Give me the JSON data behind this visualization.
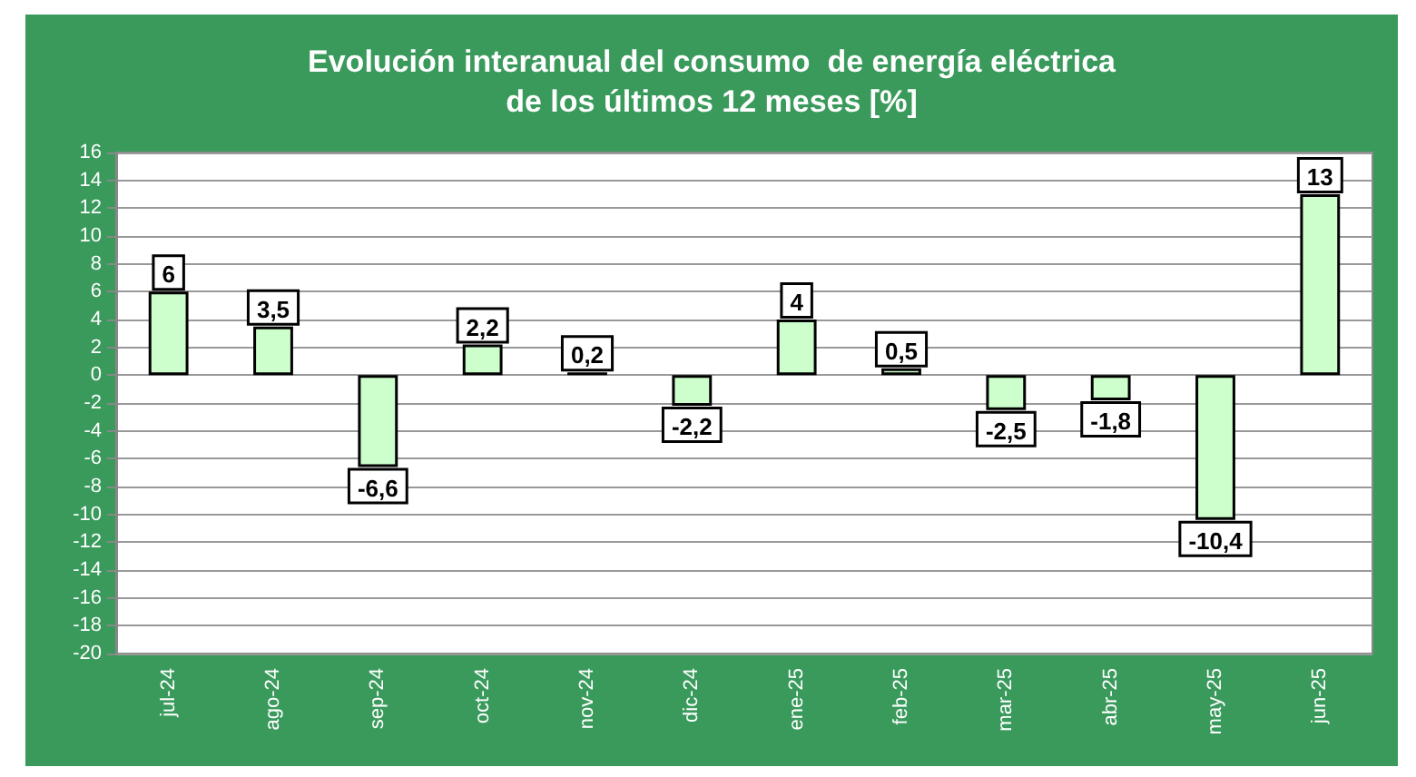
{
  "chart_data": {
    "type": "bar",
    "title": "Evolución interanual del consumo  de energía eléctrica\nde los últimos 12 meses [%]",
    "categories": [
      "jul-24",
      "ago-24",
      "sep-24",
      "oct-24",
      "nov-24",
      "dic-24",
      "ene-25",
      "feb-25",
      "mar-25",
      "abr-25",
      "may-25",
      "jun-25"
    ],
    "values": [
      6,
      3.5,
      -6.6,
      2.2,
      0.2,
      -2.2,
      4,
      0.5,
      -2.5,
      -1.8,
      -10.4,
      13
    ],
    "value_labels": [
      "6",
      "3,5",
      "-6,6",
      "2,2",
      "0,2",
      "-2,2",
      "4",
      "0,5",
      "-2,5",
      "-1,8",
      "-10,4",
      "13"
    ],
    "color": "#ccffcc",
    "ylim": [
      -20,
      16
    ],
    "yticks": [
      -20,
      -18,
      -16,
      -14,
      -12,
      -10,
      -8,
      -6,
      -4,
      -2,
      0,
      2,
      4,
      6,
      8,
      10,
      12,
      14,
      16
    ],
    "grid": "y"
  }
}
